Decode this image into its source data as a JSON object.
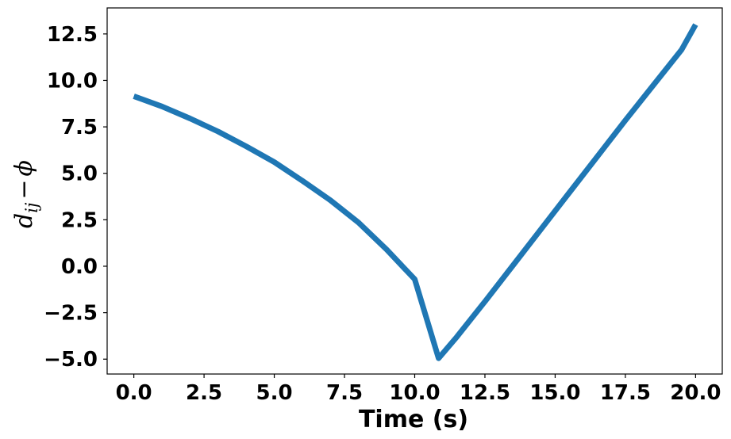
{
  "chart_data": {
    "type": "line",
    "title": "",
    "xlabel": "Time (s)",
    "ylabel": {
      "d": "d",
      "subscript": "ij",
      "minus": "−",
      "phi": "ϕ"
    },
    "xlim": [
      -0.95,
      20.95
    ],
    "ylim": [
      -5.8,
      13.9
    ],
    "xticks": [
      0.0,
      2.5,
      5.0,
      7.5,
      10.0,
      12.5,
      15.0,
      17.5,
      20.0
    ],
    "xtick_labels": [
      "0.0",
      "2.5",
      "5.0",
      "7.5",
      "10.0",
      "12.5",
      "15.0",
      "17.5",
      "20.0"
    ],
    "yticks": [
      -5.0,
      -2.5,
      0.0,
      2.5,
      5.0,
      7.5,
      10.0,
      12.5
    ],
    "ytick_labels": [
      "−5.0",
      "−2.5",
      "0.0",
      "2.5",
      "5.0",
      "7.5",
      "10.0",
      "12.5"
    ],
    "grid": false,
    "legend": "none",
    "series": [
      {
        "color": "#1f77b4",
        "x": [
          0.0,
          1.0,
          2.0,
          3.0,
          4.0,
          5.0,
          6.0,
          7.0,
          8.0,
          9.0,
          10.0,
          10.85,
          11.5,
          12.5,
          13.5,
          14.5,
          15.5,
          16.5,
          17.5,
          18.5,
          19.5,
          20.0
        ],
        "y": [
          9.15,
          8.6,
          7.95,
          7.25,
          6.45,
          5.6,
          4.6,
          3.55,
          2.35,
          0.9,
          -0.7,
          -4.95,
          -3.8,
          -1.9,
          0.05,
          2.0,
          3.95,
          5.9,
          7.85,
          9.75,
          11.65,
          13.0
        ]
      }
    ]
  }
}
